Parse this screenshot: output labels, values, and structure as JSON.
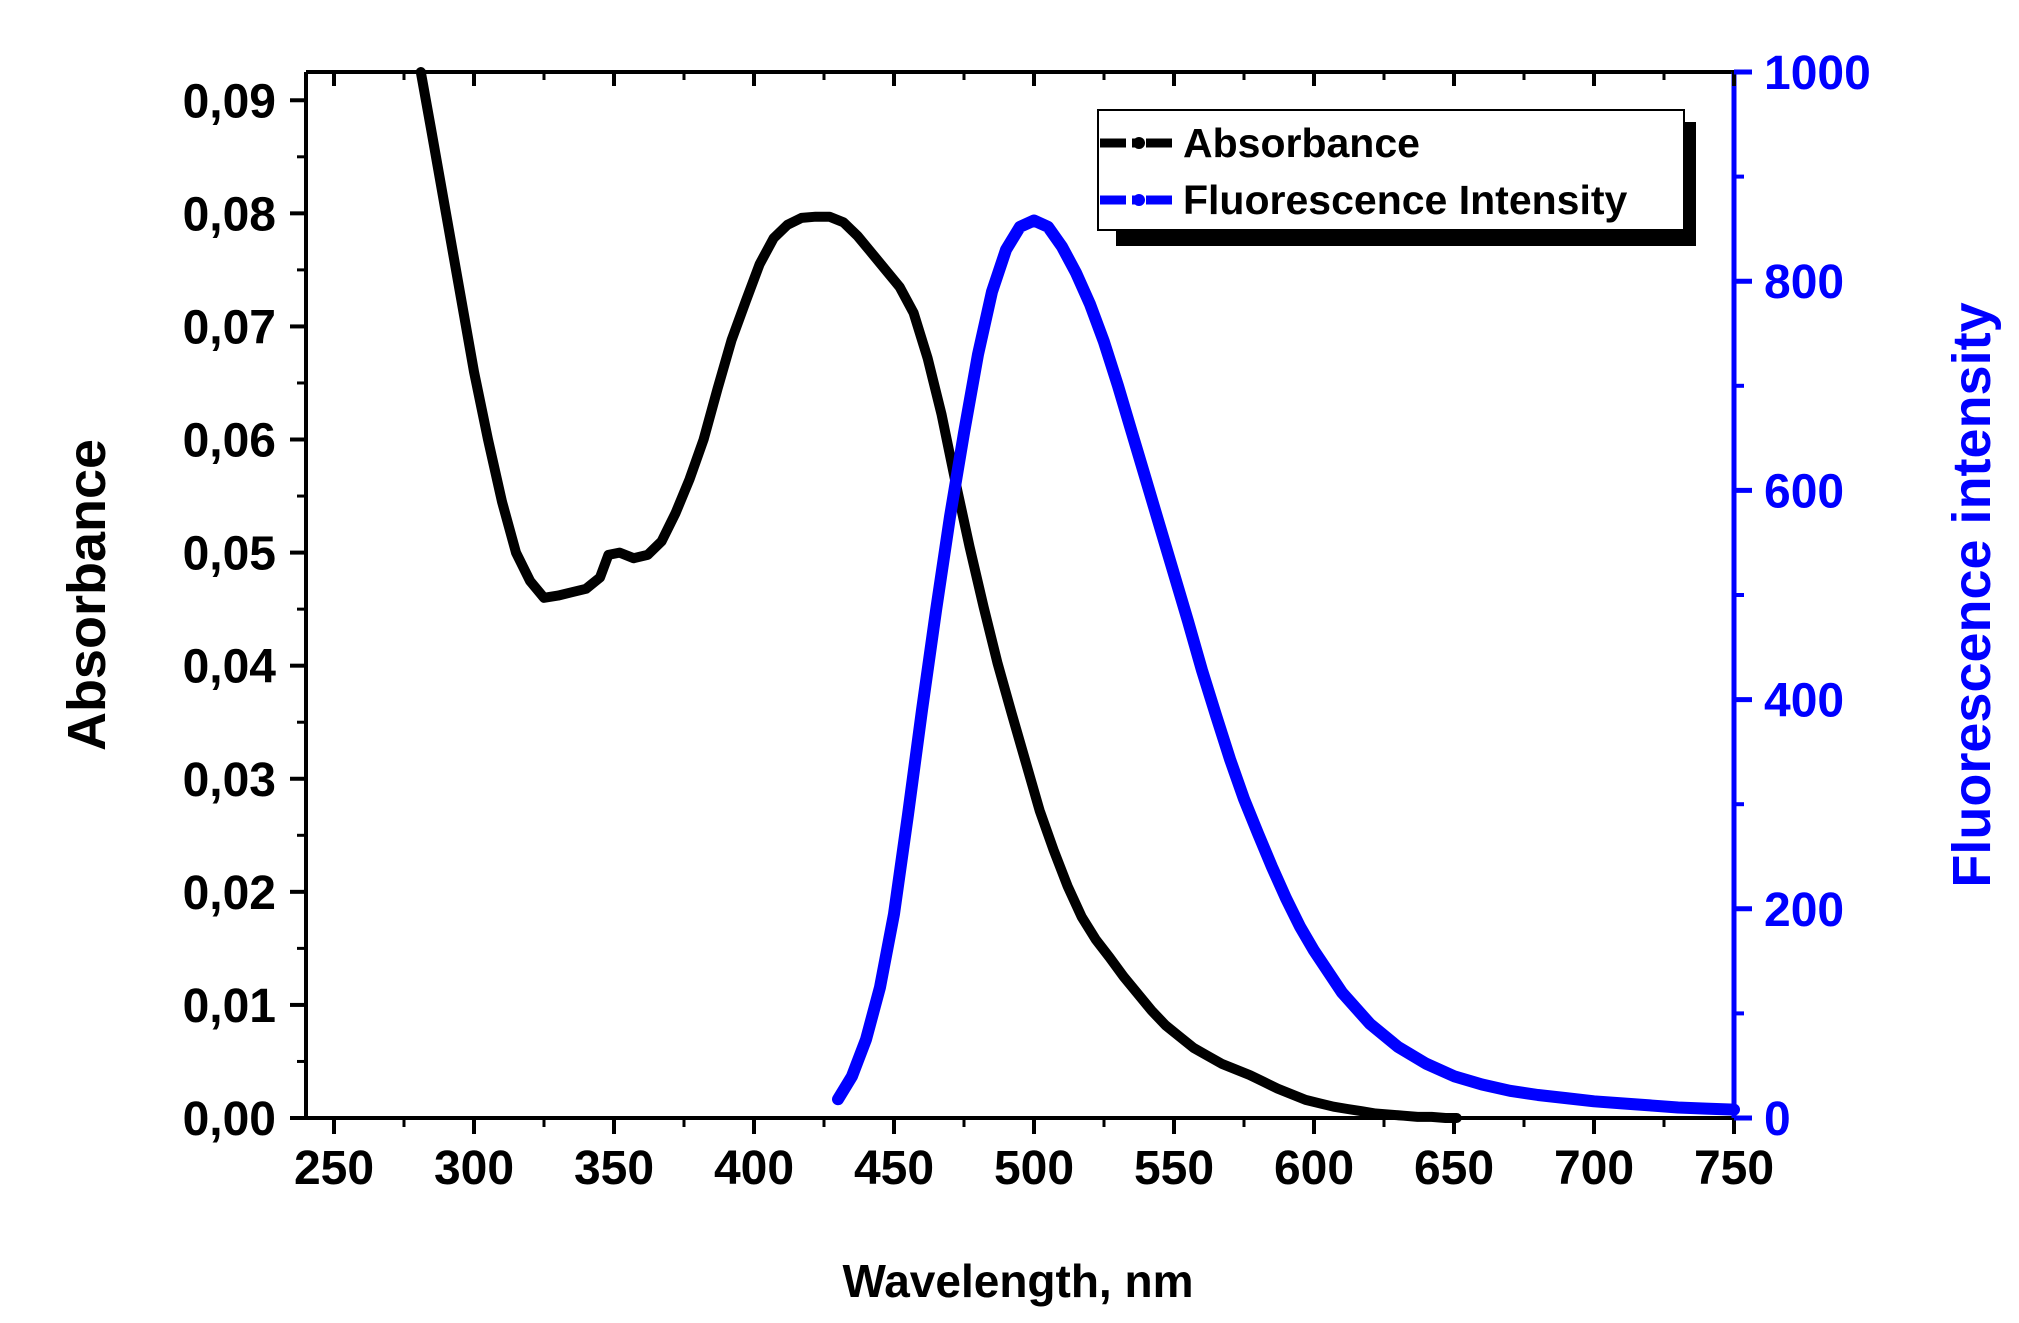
{
  "chart_data": {
    "type": "line",
    "title": "",
    "xlabel": "Wavelength, nm",
    "ylabel_left": "Absorbance",
    "ylabel_right": "Fluorescence intensity",
    "xlim": [
      240,
      750
    ],
    "ylim_left": [
      0,
      0.0925
    ],
    "ylim_right": [
      0,
      1000
    ],
    "x_ticks": [
      "250",
      "300",
      "350",
      "400",
      "450",
      "500",
      "550",
      "600",
      "650",
      "700",
      "750"
    ],
    "y_left_ticks": [
      "0,00",
      "0,01",
      "0,02",
      "0,03",
      "0,04",
      "0,05",
      "0,06",
      "0,07",
      "0,08",
      "0,09"
    ],
    "y_right_ticks": [
      "0",
      "200",
      "400",
      "600",
      "800",
      "1000"
    ],
    "grid": false,
    "legend_position": "top-right",
    "legend": [
      "Absorbance",
      "Fluorescence Intensity"
    ],
    "colors": {
      "absorbance": "#000000",
      "fluorescence": "#0000ff"
    },
    "series": [
      {
        "name": "Absorbance",
        "axis": "left",
        "x": [
          281,
          285,
          290,
          295,
          300,
          305,
          310,
          315,
          320,
          325,
          330,
          335,
          340,
          345,
          348,
          352,
          357,
          362,
          367,
          372,
          377,
          382,
          387,
          392,
          397,
          402,
          407,
          412,
          417,
          422,
          427,
          432,
          437,
          442,
          447,
          452,
          457,
          462,
          467,
          472,
          477,
          482,
          487,
          492,
          497,
          502,
          507,
          512,
          517,
          522,
          527,
          532,
          537,
          542,
          547,
          552,
          557,
          562,
          567,
          572,
          577,
          582,
          587,
          592,
          597,
          602,
          607,
          612,
          617,
          622,
          627,
          632,
          637,
          642,
          647,
          651
        ],
        "values": [
          0.0925,
          0.087,
          0.08,
          0.073,
          0.066,
          0.06,
          0.0545,
          0.05,
          0.0475,
          0.046,
          0.0462,
          0.0465,
          0.0468,
          0.0478,
          0.0498,
          0.05,
          0.0495,
          0.0498,
          0.051,
          0.0535,
          0.0565,
          0.06,
          0.0645,
          0.0688,
          0.0722,
          0.0755,
          0.0778,
          0.079,
          0.0796,
          0.0797,
          0.0797,
          0.0792,
          0.078,
          0.0765,
          0.075,
          0.0735,
          0.0712,
          0.0672,
          0.0622,
          0.0562,
          0.0505,
          0.0452,
          0.0402,
          0.0358,
          0.0315,
          0.0272,
          0.0237,
          0.0205,
          0.0178,
          0.0158,
          0.0142,
          0.0125,
          0.011,
          0.0095,
          0.0082,
          0.0072,
          0.0062,
          0.0055,
          0.0048,
          0.0043,
          0.0038,
          0.0032,
          0.0026,
          0.0021,
          0.0016,
          0.0013,
          0.001,
          0.0008,
          0.0006,
          0.0004,
          0.0003,
          0.0002,
          0.0001,
          0.0001,
          0.0,
          0.0
        ]
      },
      {
        "name": "Fluorescence Intensity",
        "axis": "right",
        "x": [
          430,
          435,
          440,
          445,
          450,
          455,
          460,
          465,
          470,
          475,
          480,
          485,
          490,
          495,
          500,
          505,
          510,
          515,
          520,
          525,
          530,
          535,
          540,
          545,
          550,
          555,
          560,
          565,
          570,
          575,
          580,
          585,
          590,
          595,
          600,
          610,
          620,
          630,
          640,
          650,
          660,
          670,
          680,
          690,
          700,
          710,
          720,
          730,
          740,
          750
        ],
        "values": [
          18,
          40,
          75,
          125,
          195,
          290,
          390,
          485,
          575,
          655,
          730,
          790,
          830,
          852,
          858,
          852,
          833,
          808,
          778,
          742,
          700,
          655,
          610,
          565,
          520,
          475,
          428,
          385,
          343,
          305,
          272,
          240,
          210,
          183,
          160,
          120,
          90,
          68,
          52,
          40,
          32,
          26,
          22,
          19,
          16,
          14,
          12,
          10,
          9,
          8
        ]
      }
    ]
  }
}
